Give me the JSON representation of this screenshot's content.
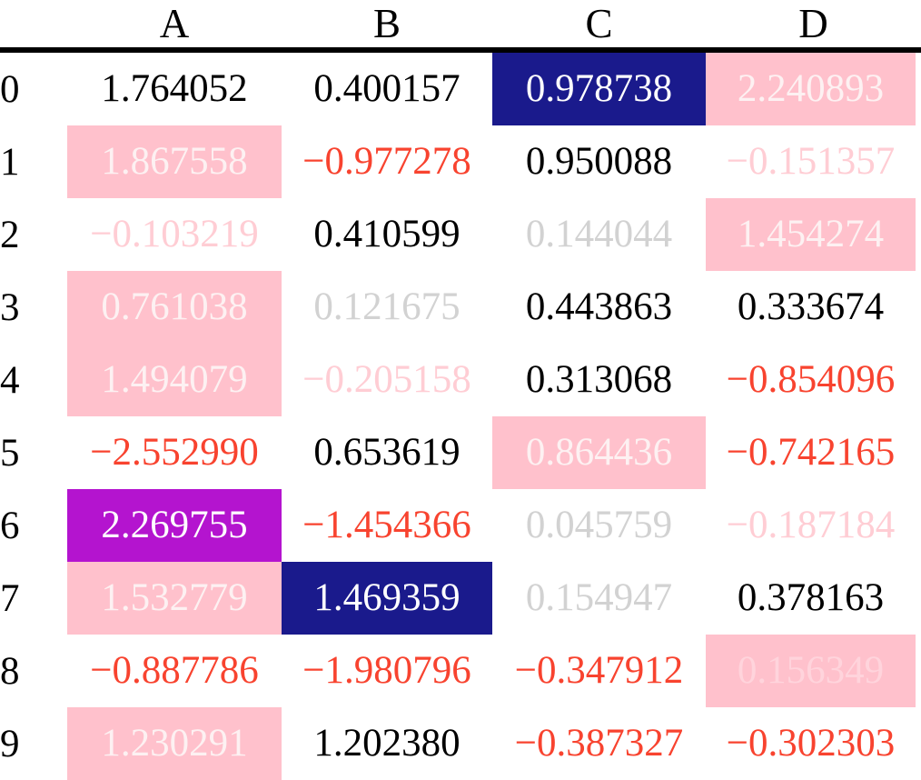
{
  "palette": {
    "black": "#000000",
    "red": "#f8432f",
    "grey": "#d2d2d2",
    "light_pink": "#ffcdd4",
    "pale_pink": "#fdf1f2",
    "faint_pink": "#ffd4dc",
    "white": "#ffffff",
    "pink": "#ffc1cc",
    "navy": "#1a1a8c",
    "magenta": "#b414cf",
    "rule": "#000000"
  },
  "table": {
    "index_header": "",
    "columns": [
      "A",
      "B",
      "C",
      "D"
    ],
    "rows": [
      {
        "index": "0",
        "cells": [
          {
            "text": "1.764052",
            "fg": "black",
            "bg": "none"
          },
          {
            "text": "0.400157",
            "fg": "black",
            "bg": "none"
          },
          {
            "text": "0.978738",
            "fg": "white",
            "bg": "navy"
          },
          {
            "text": "2.240893",
            "fg": "pale_pink",
            "bg": "pink"
          }
        ]
      },
      {
        "index": "1",
        "cells": [
          {
            "text": "1.867558",
            "fg": "pale_pink",
            "bg": "pink"
          },
          {
            "text": "−0.977278",
            "fg": "red",
            "bg": "none"
          },
          {
            "text": "0.950088",
            "fg": "black",
            "bg": "none"
          },
          {
            "text": "−0.151357",
            "fg": "light_pink",
            "bg": "none"
          }
        ]
      },
      {
        "index": "2",
        "cells": [
          {
            "text": "−0.103219",
            "fg": "light_pink",
            "bg": "none"
          },
          {
            "text": "0.410599",
            "fg": "black",
            "bg": "none"
          },
          {
            "text": "0.144044",
            "fg": "grey",
            "bg": "none"
          },
          {
            "text": "1.454274",
            "fg": "pale_pink",
            "bg": "pink"
          }
        ]
      },
      {
        "index": "3",
        "cells": [
          {
            "text": "0.761038",
            "fg": "pale_pink",
            "bg": "pink"
          },
          {
            "text": "0.121675",
            "fg": "grey",
            "bg": "none"
          },
          {
            "text": "0.443863",
            "fg": "black",
            "bg": "none"
          },
          {
            "text": "0.333674",
            "fg": "black",
            "bg": "none"
          }
        ]
      },
      {
        "index": "4",
        "cells": [
          {
            "text": "1.494079",
            "fg": "pale_pink",
            "bg": "pink"
          },
          {
            "text": "−0.205158",
            "fg": "light_pink",
            "bg": "none"
          },
          {
            "text": "0.313068",
            "fg": "black",
            "bg": "none"
          },
          {
            "text": "−0.854096",
            "fg": "red",
            "bg": "none"
          }
        ]
      },
      {
        "index": "5",
        "cells": [
          {
            "text": "−2.552990",
            "fg": "red",
            "bg": "none"
          },
          {
            "text": "0.653619",
            "fg": "black",
            "bg": "none"
          },
          {
            "text": "0.864436",
            "fg": "pale_pink",
            "bg": "pink"
          },
          {
            "text": "−0.742165",
            "fg": "red",
            "bg": "none"
          }
        ]
      },
      {
        "index": "6",
        "cells": [
          {
            "text": "2.269755",
            "fg": "white",
            "bg": "magenta"
          },
          {
            "text": "−1.454366",
            "fg": "red",
            "bg": "none"
          },
          {
            "text": "0.045759",
            "fg": "grey",
            "bg": "none"
          },
          {
            "text": "−0.187184",
            "fg": "light_pink",
            "bg": "none"
          }
        ]
      },
      {
        "index": "7",
        "cells": [
          {
            "text": "1.532779",
            "fg": "pale_pink",
            "bg": "pink"
          },
          {
            "text": "1.469359",
            "fg": "white",
            "bg": "navy"
          },
          {
            "text": "0.154947",
            "fg": "grey",
            "bg": "none"
          },
          {
            "text": "0.378163",
            "fg": "black",
            "bg": "none"
          }
        ]
      },
      {
        "index": "8",
        "cells": [
          {
            "text": "−0.887786",
            "fg": "red",
            "bg": "none"
          },
          {
            "text": "−1.980796",
            "fg": "red",
            "bg": "none"
          },
          {
            "text": "−0.347912",
            "fg": "red",
            "bg": "none"
          },
          {
            "text": "0.156349",
            "fg": "faint_pink",
            "bg": "pink"
          }
        ]
      },
      {
        "index": "9",
        "cells": [
          {
            "text": "1.230291",
            "fg": "pale_pink",
            "bg": "pink"
          },
          {
            "text": "1.202380",
            "fg": "black",
            "bg": "none"
          },
          {
            "text": "−0.387327",
            "fg": "red",
            "bg": "none"
          },
          {
            "text": "−0.302303",
            "fg": "red",
            "bg": "none"
          }
        ]
      }
    ]
  },
  "chart_data": {
    "type": "table",
    "columns": [
      "A",
      "B",
      "C",
      "D"
    ],
    "index": [
      0,
      1,
      2,
      3,
      4,
      5,
      6,
      7,
      8,
      9
    ],
    "rows": [
      [
        1.764052,
        0.400157,
        0.978738,
        2.240893
      ],
      [
        1.867558,
        -0.977278,
        0.950088,
        -0.151357
      ],
      [
        -0.103219,
        0.410599,
        0.144044,
        1.454274
      ],
      [
        0.761038,
        0.121675,
        0.443863,
        0.333674
      ],
      [
        1.494079,
        -0.205158,
        0.313068,
        -0.854096
      ],
      [
        -2.55299,
        0.653619,
        0.864436,
        -0.742165
      ],
      [
        2.269755,
        -1.454366,
        0.045759,
        -0.187184
      ],
      [
        1.532779,
        1.469359,
        0.154947,
        0.378163
      ],
      [
        -0.887786,
        -1.980796,
        -0.347912,
        0.156349
      ],
      [
        1.230291,
        1.20238,
        -0.387327,
        -0.302303
      ]
    ],
    "style_notes": {
      "negative_values": "red text",
      "small_magnitude_positive": "light grey text",
      "small_magnitude_negative": "light pink text",
      "highlight_backgrounds": [
        "pink",
        "navy",
        "magenta"
      ]
    }
  }
}
